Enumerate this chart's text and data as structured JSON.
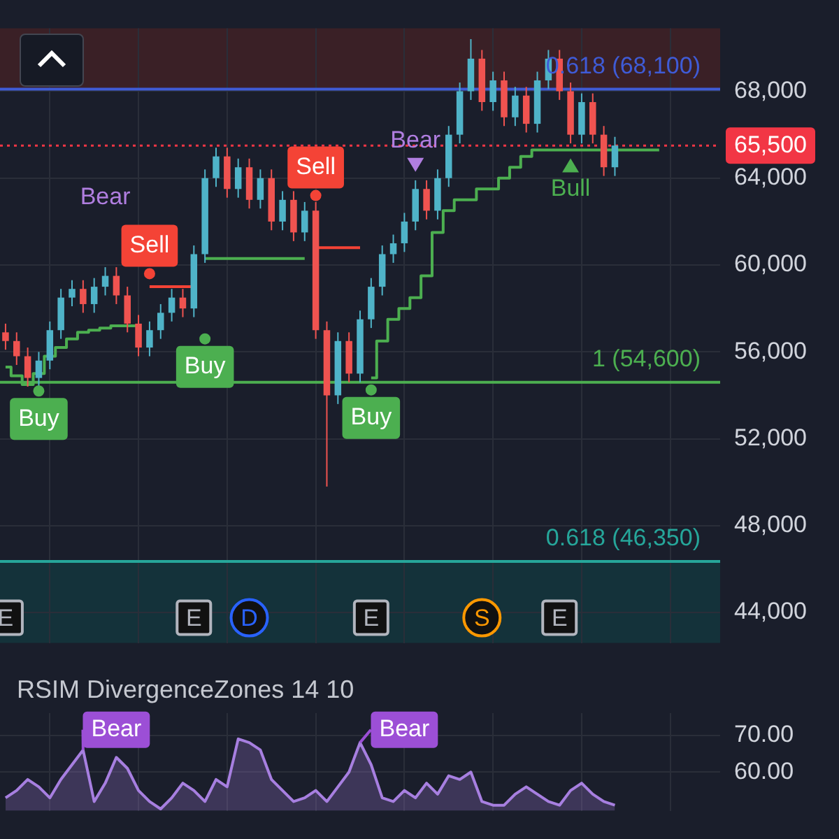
{
  "chart_data": [
    {
      "type": "candlestick",
      "categories": [
        null,
        null,
        null,
        null,
        null,
        null,
        null,
        null,
        null,
        null,
        null,
        null,
        null,
        null,
        null,
        null,
        null,
        null,
        null,
        null,
        null,
        null,
        null,
        null,
        null,
        null,
        null,
        null,
        null,
        null,
        null,
        null,
        null,
        null,
        null,
        null,
        null,
        null,
        null,
        null,
        null,
        null,
        null,
        null,
        null,
        null,
        null,
        null,
        null,
        null,
        null,
        null,
        null,
        null,
        null,
        null,
        null,
        null,
        null,
        null,
        null,
        null,
        null,
        null,
        null
      ],
      "ohlc": [
        [
          56900,
          57300,
          56100,
          56500
        ],
        [
          56500,
          56900,
          55400,
          55800
        ],
        [
          55800,
          56200,
          54400,
          54800
        ],
        [
          54800,
          56000,
          54400,
          55600
        ],
        [
          55600,
          57400,
          55200,
          57000
        ],
        [
          57000,
          58900,
          56600,
          58500
        ],
        [
          58500,
          59300,
          58100,
          58900
        ],
        [
          58900,
          59300,
          57800,
          58200
        ],
        [
          58200,
          59400,
          57800,
          59000
        ],
        [
          59000,
          59900,
          58600,
          59500
        ],
        [
          59500,
          59900,
          58200,
          58600
        ],
        [
          58600,
          59000,
          56900,
          57300
        ],
        [
          57300,
          57700,
          55800,
          56200
        ],
        [
          56200,
          57400,
          55800,
          57000
        ],
        [
          57000,
          58200,
          56600,
          57800
        ],
        [
          57800,
          58900,
          57400,
          58500
        ],
        [
          58500,
          58900,
          57600,
          58000
        ],
        [
          58000,
          60900,
          57600,
          60500
        ],
        [
          60500,
          64400,
          60100,
          64000
        ],
        [
          64000,
          65400,
          63600,
          65000
        ],
        [
          65000,
          65400,
          63100,
          63500
        ],
        [
          63500,
          64900,
          63100,
          64500
        ],
        [
          64500,
          64900,
          62600,
          63000
        ],
        [
          63000,
          64400,
          62600,
          64000
        ],
        [
          64000,
          64400,
          61600,
          62000
        ],
        [
          62000,
          63400,
          61600,
          63000
        ],
        [
          63000,
          63400,
          61100,
          61500
        ],
        [
          61500,
          62900,
          61100,
          62500
        ],
        [
          62500,
          62900,
          56600,
          57000
        ],
        [
          57000,
          57400,
          49800,
          54000
        ],
        [
          54000,
          56900,
          53600,
          56500
        ],
        [
          56500,
          56900,
          54600,
          55000
        ],
        [
          55000,
          57900,
          54600,
          57500
        ],
        [
          57500,
          59400,
          57100,
          59000
        ],
        [
          59000,
          60900,
          58600,
          60500
        ],
        [
          60500,
          61400,
          60100,
          61000
        ],
        [
          61000,
          62400,
          60600,
          62000
        ],
        [
          62000,
          63900,
          61600,
          63500
        ],
        [
          63500,
          63900,
          62100,
          62500
        ],
        [
          62500,
          64400,
          62100,
          64000
        ],
        [
          64000,
          66400,
          63600,
          66000
        ],
        [
          66000,
          68400,
          65600,
          68000
        ],
        [
          68000,
          70400,
          67600,
          69500
        ],
        [
          69500,
          69900,
          67100,
          67500
        ],
        [
          67500,
          68900,
          67100,
          68500
        ],
        [
          68500,
          68900,
          66400,
          66800
        ],
        [
          66800,
          68200,
          66400,
          67800
        ],
        [
          67800,
          68200,
          66100,
          66500
        ],
        [
          66500,
          68900,
          66100,
          68500
        ],
        [
          68500,
          69900,
          68100,
          69500
        ],
        [
          69500,
          69900,
          67600,
          68000
        ],
        [
          68000,
          68400,
          65600,
          66000
        ],
        [
          66000,
          67900,
          65600,
          67500
        ],
        [
          67500,
          67900,
          65600,
          66000
        ],
        [
          66000,
          66400,
          64100,
          64500
        ],
        [
          64500,
          65900,
          64100,
          65500
        ],
        null,
        null,
        null,
        null,
        null,
        null,
        null,
        null,
        null
      ],
      "series": [
        {
          "type": "step",
          "color": "#4caf50",
          "values": [
            55300,
            54900,
            54500,
            55000,
            55800,
            56200,
            56600,
            56900,
            57000,
            57100,
            57200,
            57200,
            57200,
            null,
            null,
            null,
            null,
            null,
            60300,
            60300,
            60300,
            60300,
            60300,
            60300,
            60300,
            60300,
            60300,
            60300,
            null,
            null,
            null,
            null,
            null,
            54800,
            56500,
            57500,
            58000,
            58500,
            59500,
            61500,
            62500,
            63000,
            63000,
            63500,
            63500,
            64000,
            64500,
            65000,
            65300,
            65300,
            65300,
            65300,
            65300,
            65300,
            65300,
            65300,
            65300,
            65300,
            65300,
            65300,
            null,
            null,
            null,
            null,
            null
          ]
        },
        {
          "type": "step",
          "color": "#f44336",
          "values": [
            null,
            null,
            null,
            null,
            null,
            null,
            null,
            null,
            null,
            null,
            null,
            null,
            null,
            59000,
            59000,
            59000,
            59000,
            59000,
            null,
            null,
            null,
            null,
            null,
            null,
            null,
            null,
            null,
            null,
            60800,
            60800,
            60800,
            60800,
            60800,
            null,
            null,
            null,
            null,
            null,
            null,
            null,
            null,
            null,
            null,
            null,
            null,
            null,
            null,
            null,
            null,
            null,
            null,
            null,
            null,
            null,
            null,
            null,
            null,
            null,
            null,
            null,
            null,
            null,
            null,
            null,
            null
          ]
        }
      ],
      "ylim": [
        42600,
        70900
      ],
      "yticks": [
        {
          "value": 44000,
          "label": "44,000"
        },
        {
          "value": 48000,
          "label": "48,000"
        },
        {
          "value": 52000,
          "label": "52,000"
        },
        {
          "value": 56000,
          "label": "56,000"
        },
        {
          "value": 60000,
          "label": "60,000"
        },
        {
          "value": 64000,
          "label": "64,000"
        },
        {
          "value": 68000,
          "label": "68,000"
        }
      ],
      "grid": true,
      "tick_labels": "y",
      "ref_lines": [
        {
          "axis": "y",
          "value": 68100,
          "label": "0.618 (68,100)",
          "color": "#3f5bd6"
        },
        {
          "axis": "y",
          "value": 54600,
          "label": "1 (54,600)",
          "color": "#4caf50"
        },
        {
          "axis": "y",
          "value": 46350,
          "label": "0.618 (46,350)",
          "color": "#26a69a"
        },
        {
          "axis": "y",
          "value": 65500,
          "label": "65,500",
          "color": "#f23645",
          "line_style": "dotted"
        }
      ],
      "bands": [
        {
          "axis": "y",
          "from": 68100,
          "to": 70900,
          "color": "#3a2026"
        },
        {
          "axis": "y",
          "from": 42600,
          "to": 46350,
          "color": "#14323a"
        }
      ],
      "annotations": [
        {
          "text": "Buy",
          "y": 54200
        },
        "Bear",
        {
          "text": "Sell",
          "y": 59600
        },
        {
          "text": "Buy",
          "y": 56600
        },
        {
          "text": "Sell",
          "y": 63200
        },
        {
          "text": "Buy",
          "y": 54250
        },
        "Bear",
        "Bull",
        "E",
        "E",
        "D",
        "E",
        "S",
        "E"
      ]
    },
    {
      "type": "line",
      "title": "RSIM DivergenceZones 14 10",
      "categories": [
        null,
        null,
        null,
        null,
        null,
        null,
        null,
        null,
        null,
        null,
        null,
        null,
        null,
        null,
        null,
        null,
        null,
        null,
        null,
        null,
        null,
        null,
        null,
        null,
        null,
        null,
        null,
        null,
        null,
        null,
        null,
        null,
        null,
        null,
        null,
        null,
        null,
        null,
        null,
        null,
        null,
        null,
        null,
        null,
        null,
        null,
        null,
        null,
        null,
        null,
        null,
        null,
        null,
        null,
        null,
        null,
        null,
        null,
        null,
        null,
        null,
        null,
        null,
        null,
        null
      ],
      "series": [
        {
          "type": "area",
          "color": "#a77fe0",
          "values": [
            53,
            55,
            58,
            56,
            53,
            58,
            62,
            66,
            52,
            57,
            64,
            61,
            55,
            52,
            50,
            53,
            57,
            55,
            52,
            58,
            56,
            69,
            68,
            66,
            58,
            55,
            52,
            53,
            55,
            52,
            56,
            60,
            68,
            62,
            53,
            52,
            55,
            53,
            57,
            54,
            59,
            58,
            60,
            52,
            51,
            51,
            54,
            56,
            54,
            52,
            51,
            55,
            57,
            54,
            52,
            51,
            null,
            null,
            null,
            null,
            null,
            null,
            null,
            null,
            null
          ]
        }
      ],
      "ylim": [
        49.5,
        76
      ],
      "yticks": [
        {
          "value": 60,
          "label": "60.00"
        },
        {
          "value": 70,
          "label": "70.00"
        }
      ],
      "grid": true,
      "tick_labels": "y",
      "annotations": [
        "Bear",
        "Bear"
      ]
    }
  ]
}
